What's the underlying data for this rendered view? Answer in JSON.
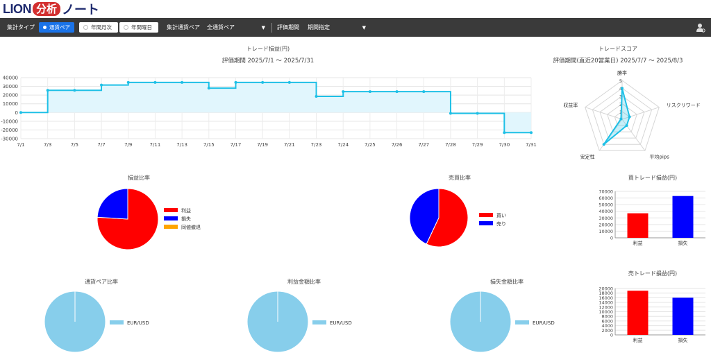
{
  "logo": {
    "text": "LION",
    "highlight": "分析",
    "suffix": "ノート"
  },
  "toolbar": {
    "aggregate_type_label": "集計タイプ",
    "btn_currency_pair": "通貨ペア",
    "btn_year_month": "年間月次",
    "btn_year_weekday": "年間曜日",
    "aggregate_pair_label": "集計通貨ペア",
    "pair_select_value": "全通貨ペア",
    "period_label": "評価期間",
    "period_select_value": "期間指定"
  },
  "trade_pl": {
    "title": "トレード損益(円)",
    "period": "評価期間  2025/7/1 ～ 2025/7/31"
  },
  "score": {
    "title": "トレードスコア",
    "period": "評価期間(直近20営業日)  2025/7/7 ～ 2025/8/3"
  },
  "pl_ratio": {
    "title": "損益比率"
  },
  "side_ratio": {
    "title": "売買比率"
  },
  "buy_pl": {
    "title": "買トレード損益(円)"
  },
  "sell_pl": {
    "title": "売トレード損益(円)"
  },
  "pair_ratio": {
    "title": "通貨ペア比率"
  },
  "profit_amount_ratio": {
    "title": "利益金額比率"
  },
  "loss_amount_ratio": {
    "title": "損失金額比率"
  },
  "colors": {
    "line": "#1ec0e6",
    "fill": "#e1f6fd",
    "profit": "#ff0000",
    "loss": "#0000ff",
    "even": "#ffa500",
    "pair": "#87ceeb",
    "toolbar": "#3a3a3a",
    "accent": "#1a73e8"
  },
  "icons": {
    "user": "user-settings-icon",
    "dropdown": "caret-down-icon"
  },
  "chart_data": [
    {
      "id": "trade_pl",
      "type": "area",
      "x": [
        "7/1",
        "7/3",
        "7/5",
        "7/7",
        "7/9",
        "7/11",
        "7/13",
        "7/15",
        "7/17",
        "7/19",
        "7/21",
        "7/23",
        "7/24",
        "7/25",
        "7/26",
        "7/27",
        "7/28",
        "7/29",
        "7/30",
        "7/31"
      ],
      "y": [
        0,
        25500,
        25500,
        31500,
        34500,
        34500,
        34500,
        28000,
        34500,
        34500,
        34500,
        18500,
        24000,
        24000,
        24000,
        24000,
        -1000,
        -1000,
        -23000,
        -23000
      ],
      "ylim": [
        -30000,
        40000
      ],
      "yticks": [
        40000,
        30000,
        20000,
        10000,
        0,
        -10000,
        -20000,
        -30000
      ],
      "step": true,
      "grid": true
    },
    {
      "id": "score",
      "type": "radar",
      "axes": [
        "勝率",
        "リスクリワード",
        "平均pips",
        "安定性",
        "収益率"
      ],
      "values": [
        4,
        1,
        1,
        4,
        0
      ],
      "rlim": [
        0,
        5
      ],
      "rticks": [
        1,
        2,
        3,
        4,
        5
      ]
    },
    {
      "id": "pl_ratio",
      "type": "pie",
      "labels": [
        "利益",
        "損失",
        "同値撤退"
      ],
      "values": [
        76,
        24,
        0
      ],
      "colors": [
        "#ff0000",
        "#0000ff",
        "#ffa500"
      ]
    },
    {
      "id": "side_ratio",
      "type": "pie",
      "labels": [
        "買い",
        "売り"
      ],
      "values": [
        57,
        43
      ],
      "colors": [
        "#ff0000",
        "#0000ff"
      ]
    },
    {
      "id": "buy_pl",
      "type": "bar",
      "categories": [
        "利益",
        "損失"
      ],
      "values": [
        37000,
        63000
      ],
      "colors": [
        "#ff0000",
        "#0000ff"
      ],
      "ylim": [
        0,
        70000
      ],
      "yticks": [
        0,
        10000,
        20000,
        30000,
        40000,
        50000,
        60000,
        70000
      ]
    },
    {
      "id": "sell_pl",
      "type": "bar",
      "categories": [
        "利益",
        "損失"
      ],
      "values": [
        19000,
        16000
      ],
      "colors": [
        "#ff0000",
        "#0000ff"
      ],
      "ylim": [
        0,
        20000
      ],
      "yticks": [
        0,
        2000,
        4000,
        6000,
        8000,
        10000,
        12000,
        14000,
        16000,
        18000,
        20000
      ]
    },
    {
      "id": "pair_ratio",
      "type": "pie",
      "labels": [
        "EUR/USD"
      ],
      "values": [
        100
      ],
      "colors": [
        "#87ceeb"
      ]
    },
    {
      "id": "profit_amount_ratio",
      "type": "pie",
      "labels": [
        "EUR/USD"
      ],
      "values": [
        100
      ],
      "colors": [
        "#87ceeb"
      ]
    },
    {
      "id": "loss_amount_ratio",
      "type": "pie",
      "labels": [
        "EUR/USD"
      ],
      "values": [
        100
      ],
      "colors": [
        "#87ceeb"
      ]
    }
  ]
}
